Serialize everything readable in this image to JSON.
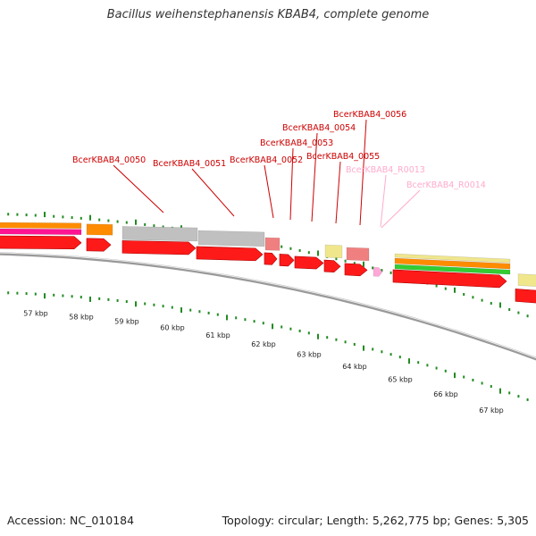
{
  "title": "Bacillus weihenstephanensis KBAB4, complete genome",
  "footer": {
    "accession": "Accession: NC_010184",
    "summary": "Topology: circular; Length: 5,262,775 bp; Genes: 5,305"
  },
  "colors": {
    "cds": "#ff1a1a",
    "gene_grey": "#c0c0c0",
    "gene_pink": "#f08080",
    "gene_khaki": "#f0e68c",
    "orange": "#ff8c00",
    "green": "#33cc33",
    "magenta": "#ff1493",
    "rna": "#ffa8d8",
    "tick": "#228b22",
    "backbone": "#888888"
  },
  "kbp_labels": [
    "57 kbp",
    "58 kbp",
    "59 kbp",
    "60 kbp",
    "61 kbp",
    "62 kbp",
    "63 kbp",
    "64 kbp",
    "65 kbp",
    "66 kbp",
    "67 kbp"
  ],
  "feature_labels": [
    {
      "text": "BcerKBAB4_0050",
      "kind": "cds"
    },
    {
      "text": "BcerKBAB4_0051",
      "kind": "cds"
    },
    {
      "text": "BcerKBAB4_0052",
      "kind": "cds"
    },
    {
      "text": "BcerKBAB4_0053",
      "kind": "cds"
    },
    {
      "text": "BcerKBAB4_0054",
      "kind": "cds"
    },
    {
      "text": "BcerKBAB4_0055",
      "kind": "cds"
    },
    {
      "text": "BcerKBAB4_0056",
      "kind": "cds"
    },
    {
      "text": "BcerKBAB4_R0013",
      "kind": "rna"
    },
    {
      "text": "BcerKBAB4_R0014",
      "kind": "rna"
    }
  ]
}
